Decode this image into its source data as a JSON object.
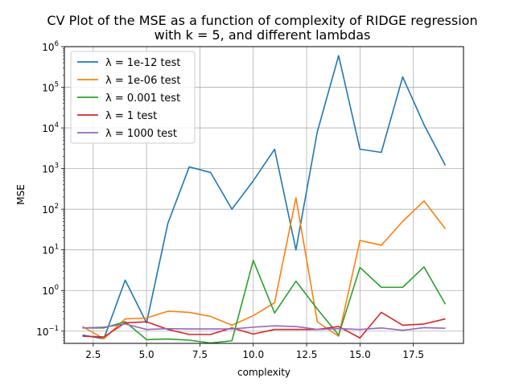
{
  "chart_data": {
    "type": "line",
    "title": [
      "CV Plot of the MSE as a function of complexity of RIDGE regression",
      "with k = 5, and different lambdas"
    ],
    "xlabel": "complexity",
    "ylabel": "MSE",
    "xlim": [
      1.15,
      19.85
    ],
    "ylim": [
      0.05,
      1000000
    ],
    "yscale": "log",
    "grid": true,
    "legend_position": "top-left",
    "x_ticks": [
      2.5,
      5.0,
      7.5,
      10.0,
      12.5,
      15.0,
      17.5
    ],
    "x_tick_labels": [
      "2.5",
      "5.0",
      "7.5",
      "10.0",
      "12.5",
      "15.0",
      "17.5"
    ],
    "y_ticks": [
      0.1,
      1,
      10,
      100,
      1000,
      10000,
      100000,
      1000000
    ],
    "y_tick_labels": [
      {
        "base": "10",
        "exp": "−1"
      },
      {
        "base": "10",
        "exp": "0"
      },
      {
        "base": "10",
        "exp": "1"
      },
      {
        "base": "10",
        "exp": "2"
      },
      {
        "base": "10",
        "exp": "3"
      },
      {
        "base": "10",
        "exp": "4"
      },
      {
        "base": "10",
        "exp": "5"
      },
      {
        "base": "10",
        "exp": "6"
      }
    ],
    "x": [
      2,
      3,
      4,
      5,
      6,
      7,
      8,
      9,
      10,
      11,
      12,
      13,
      14,
      15,
      16,
      17,
      18,
      19
    ],
    "series": [
      {
        "name": "λ = 1e-12 test",
        "color": "#1f77b4",
        "values": [
          0.08,
          0.065,
          1.8,
          0.16,
          45,
          1100,
          800,
          100,
          500,
          3000,
          10,
          8000,
          600000,
          3000,
          2500,
          180000,
          12000,
          1200
        ]
      },
      {
        "name": "λ = 1e-06 test",
        "color": "#ff7f0e",
        "values": [
          0.13,
          0.065,
          0.2,
          0.21,
          0.31,
          0.29,
          0.23,
          0.14,
          0.24,
          0.5,
          190,
          0.17,
          0.075,
          17,
          13,
          50,
          160,
          33
        ]
      },
      {
        "name": "λ = 0.001 test",
        "color": "#2ca02c",
        "values": [
          0.12,
          0.12,
          0.17,
          0.062,
          0.064,
          0.06,
          0.051,
          0.058,
          5.5,
          0.28,
          1.7,
          0.35,
          0.08,
          3.7,
          1.2,
          1.2,
          3.8,
          0.46
        ]
      },
      {
        "name": "λ = 1 test",
        "color": "#d62728",
        "values": [
          0.075,
          0.072,
          0.16,
          0.17,
          0.11,
          0.083,
          0.083,
          0.12,
          0.085,
          0.11,
          0.11,
          0.11,
          0.13,
          0.068,
          0.29,
          0.14,
          0.15,
          0.2
        ]
      },
      {
        "name": "λ = 1000 test",
        "color": "#9467bd",
        "values": [
          0.12,
          0.125,
          0.15,
          0.11,
          0.115,
          0.113,
          0.113,
          0.113,
          0.125,
          0.135,
          0.13,
          0.11,
          0.115,
          0.11,
          0.12,
          0.105,
          0.122,
          0.118
        ]
      }
    ]
  }
}
